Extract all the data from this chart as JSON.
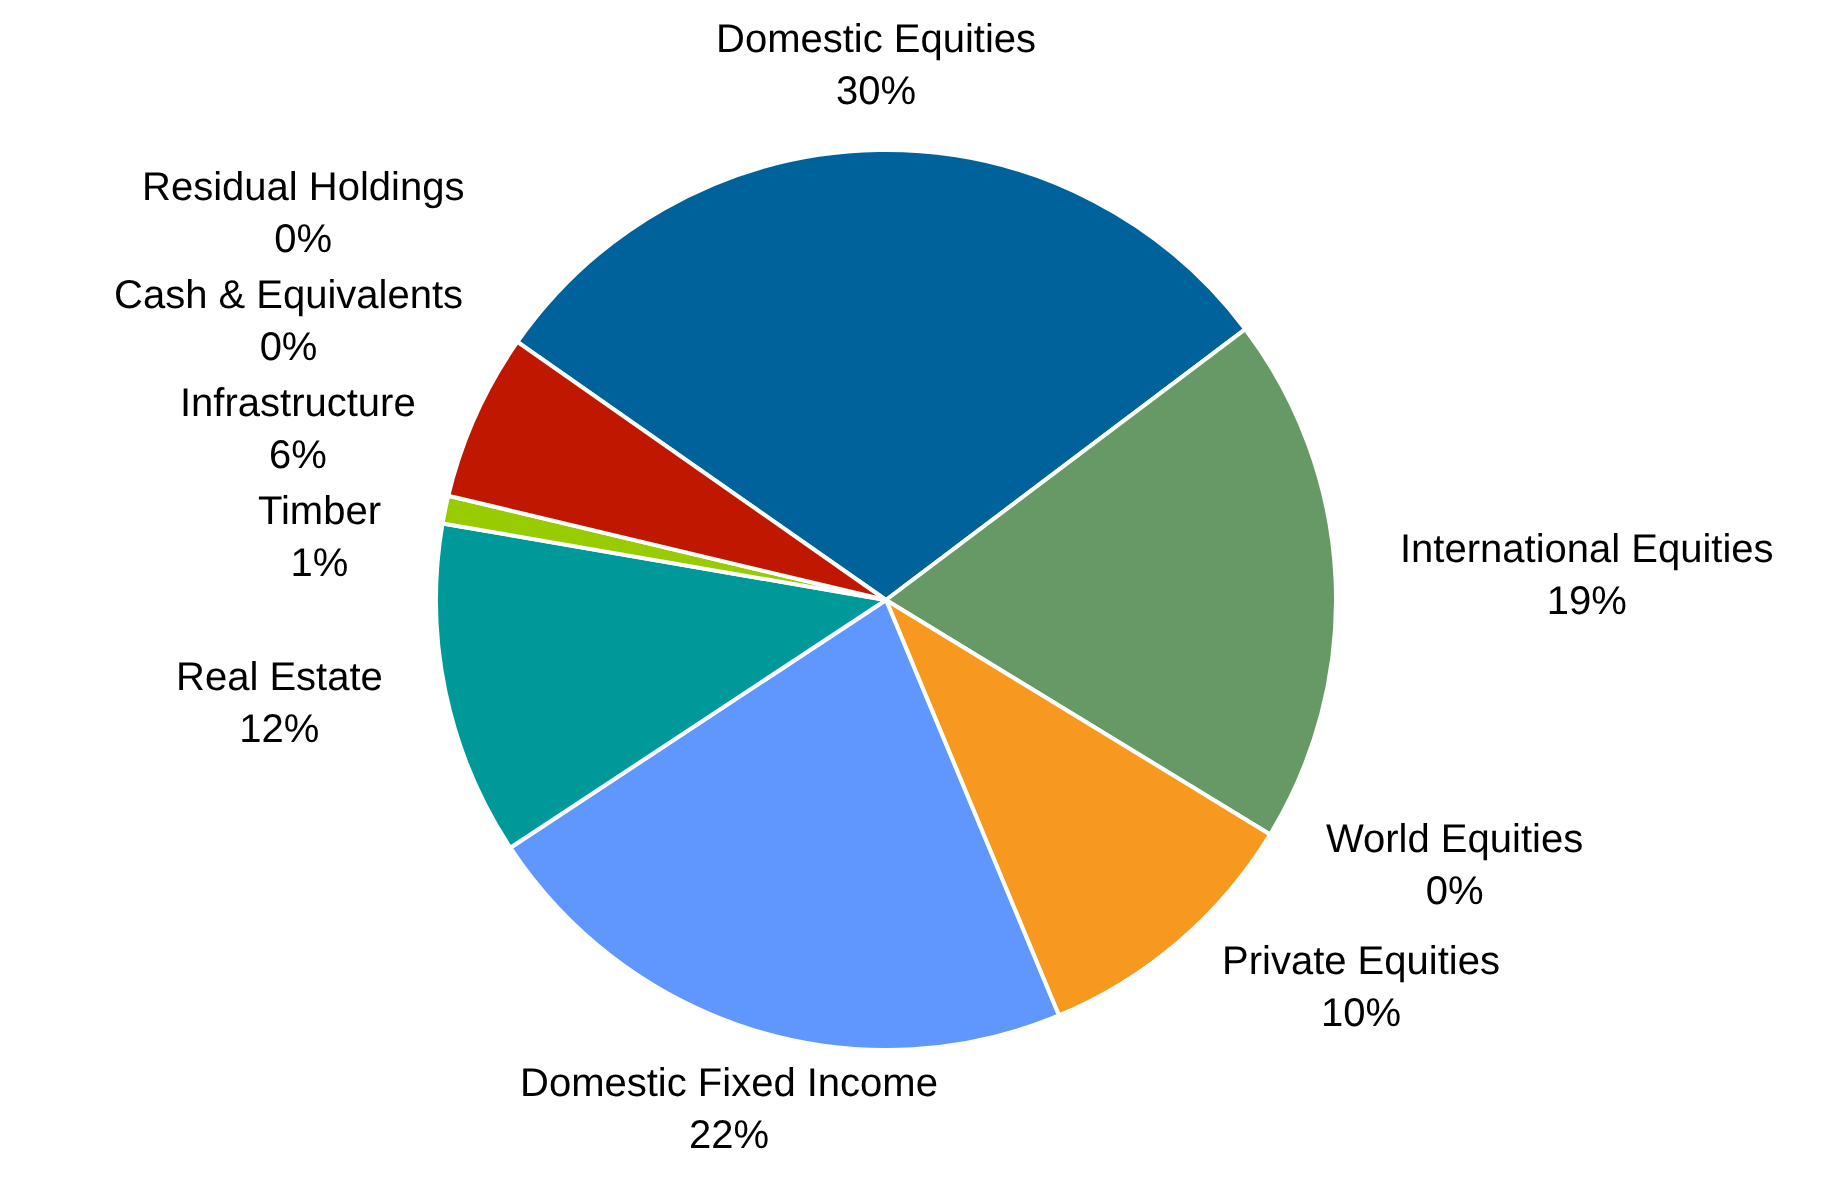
{
  "chart_data": {
    "type": "pie",
    "categories": [
      "Domestic Equities",
      "International Equities",
      "World Equities",
      "Private Equities",
      "Domestic Fixed Income",
      "Real Estate",
      "Timber",
      "Infrastructure",
      "Cash & Equivalents",
      "Residual Holdings"
    ],
    "values": [
      30,
      19,
      0,
      10,
      22,
      12,
      1,
      6,
      0,
      0
    ],
    "value_labels": [
      "30%",
      "19%",
      "0%",
      "10%",
      "22%",
      "12%",
      "1%",
      "6%",
      "0%",
      "0%"
    ],
    "colors": [
      "#00629b",
      "#669966",
      "#7f7f7f",
      "#f7991f",
      "#6097ff",
      "#009999",
      "#99cc00",
      "#c01800",
      "#bfbfbf",
      "#404040"
    ]
  }
}
